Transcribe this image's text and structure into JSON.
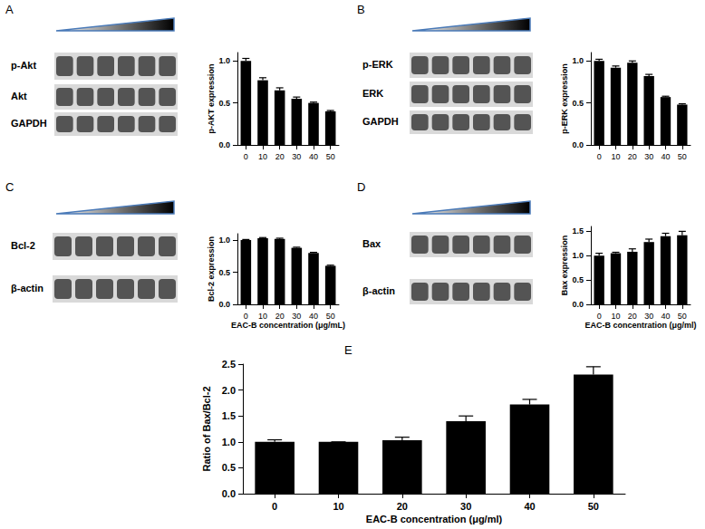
{
  "chart_data": [
    {
      "type": "bar",
      "title": "A",
      "annotations": [
        "p-Akt",
        "Akt",
        "GAPDH"
      ],
      "categories": [
        0,
        10,
        20,
        30,
        40,
        50
      ],
      "values": [
        1.0,
        0.77,
        0.65,
        0.55,
        0.5,
        0.4
      ],
      "errors": [
        0.03,
        0.03,
        0.03,
        0.02,
        0.01,
        0.01
      ],
      "y_label": "p-AKT expression",
      "color": "#000000",
      "ylim": [
        0,
        1.1
      ],
      "yticks": [
        {
          "value": 0,
          "label": "0.0"
        },
        {
          "value": 0.5,
          "label": "0.5"
        },
        {
          "value": 1,
          "label": "1.0"
        }
      ],
      "grid": false
    },
    {
      "type": "bar",
      "title": "B",
      "annotations": [
        "p-ERK",
        "ERK",
        "GAPDH"
      ],
      "categories": [
        0,
        10,
        20,
        30,
        40,
        50
      ],
      "values": [
        1.0,
        0.92,
        0.98,
        0.82,
        0.57,
        0.48
      ],
      "errors": [
        0.02,
        0.02,
        0.02,
        0.02,
        0.01,
        0.01
      ],
      "y_label": "p-ERK expression",
      "color": "#000000",
      "ylim": [
        0,
        1.1
      ],
      "yticks": [
        {
          "value": 0,
          "label": "0.0"
        },
        {
          "value": 0.5,
          "label": "0.5"
        },
        {
          "value": 1,
          "label": "1.0"
        }
      ],
      "grid": false
    },
    {
      "type": "bar",
      "title": "C",
      "annotations": [
        "Bcl-2",
        "β-actin"
      ],
      "categories": [
        0,
        10,
        20,
        30,
        40,
        50
      ],
      "values": [
        1.0,
        1.03,
        1.02,
        0.88,
        0.8,
        0.6
      ],
      "errors": [
        0.01,
        0.01,
        0.01,
        0.01,
        0.01,
        0.01
      ],
      "x_label": "EAC-B concentration (μg/mL)",
      "y_label": "Bcl-2 expression",
      "color": "#000000",
      "ylim": [
        0,
        1.1
      ],
      "yticks": [
        {
          "value": 0,
          "label": "0.0"
        },
        {
          "value": 0.5,
          "label": "0.5"
        },
        {
          "value": 1,
          "label": "1.0"
        }
      ],
      "grid": false
    },
    {
      "type": "bar",
      "title": "D",
      "annotations": [
        "Bax",
        "β-actin"
      ],
      "categories": [
        0,
        10,
        20,
        30,
        40,
        50
      ],
      "values": [
        1.0,
        1.05,
        1.08,
        1.28,
        1.4,
        1.42
      ],
      "errors": [
        0.05,
        0.02,
        0.06,
        0.06,
        0.06,
        0.08
      ],
      "x_label": "EAC-B concentration (μg/ml)",
      "y_label": "Bax expression",
      "color": "#000000",
      "ylim": [
        0,
        1.6
      ],
      "yticks": [
        {
          "value": 0,
          "label": "0.0"
        },
        {
          "value": 0.5,
          "label": "0.5"
        },
        {
          "value": 1,
          "label": "1.0"
        },
        {
          "value": 1.5,
          "label": "1.5"
        }
      ],
      "grid": false
    },
    {
      "type": "bar",
      "title": "E",
      "categories": [
        0,
        10,
        20,
        30,
        40,
        50
      ],
      "values": [
        1.0,
        1.0,
        1.03,
        1.4,
        1.72,
        2.3
      ],
      "errors": [
        0.04,
        0.0,
        0.06,
        0.1,
        0.1,
        0.15
      ],
      "x_label": "EAC-B concentration (μg/ml)",
      "y_label": "Ratio of Bax/Bcl-2",
      "color": "#000000",
      "ylim": [
        0,
        2.5
      ],
      "yticks": [
        {
          "value": 0,
          "label": "0.0"
        },
        {
          "value": 0.5,
          "label": "0.5"
        },
        {
          "value": 1,
          "label": "1.0"
        },
        {
          "value": 1.5,
          "label": "1.5"
        },
        {
          "value": 2,
          "label": "2.0"
        },
        {
          "value": 2.5,
          "label": "2.5"
        }
      ],
      "grid": false
    }
  ]
}
